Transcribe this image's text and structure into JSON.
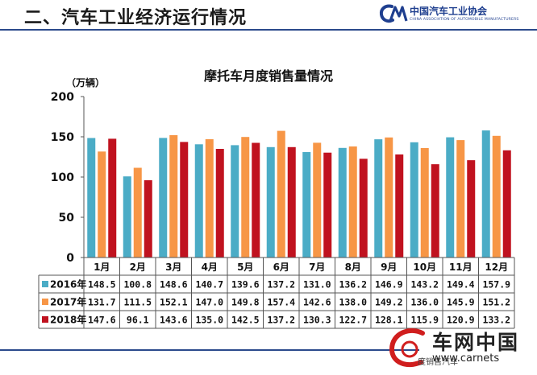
{
  "header": {
    "title": "二、汽车工业经济运行情况"
  },
  "logo": {
    "name_cn": "中国汽车工业协会",
    "name_en": "CHINA ASSOCIATION OF AUTOMOBILE MANUFACTURERS"
  },
  "watermark": {
    "name_cn": "车网中国",
    "url": "www.carnets",
    "sub": "度销售汽车"
  },
  "colors": {
    "s2016": "#4bacc6",
    "s2017": "#f79646",
    "s2018": "#c0121f",
    "header_line": "#2b4a8c"
  },
  "chart_data": {
    "type": "bar",
    "title": "摩托车月度销售量情况",
    "ylabel": "（万辆）",
    "ylim": [
      0,
      200
    ],
    "yticks": [
      0,
      50,
      100,
      150,
      200
    ],
    "categories": [
      "1月",
      "2月",
      "3月",
      "4月",
      "5月",
      "6月",
      "7月",
      "8月",
      "9月",
      "10月",
      "11月",
      "12月"
    ],
    "series": [
      {
        "name": "2016年",
        "values": [
          148.5,
          100.8,
          148.6,
          140.7,
          139.6,
          137.2,
          131.0,
          136.2,
          146.9,
          143.2,
          149.4,
          157.9
        ]
      },
      {
        "name": "2017年",
        "values": [
          131.7,
          111.5,
          152.1,
          147.0,
          149.8,
          157.4,
          142.6,
          138.0,
          149.2,
          136.0,
          145.9,
          151.2
        ]
      },
      {
        "name": "2018年",
        "values": [
          147.6,
          96.1,
          143.6,
          135.0,
          142.5,
          137.2,
          130.3,
          122.7,
          128.1,
          115.9,
          120.9,
          133.2
        ]
      }
    ],
    "table_labels": [
      [
        "148.5",
        "100.8",
        "148.6",
        "140.7",
        "139.6",
        "137.2",
        "131.0",
        "136.2",
        "146.9",
        "143.2",
        "149.4",
        "157.9"
      ],
      [
        "131.7",
        "111.5",
        "152.1",
        "147.0",
        "149.8",
        "157.4",
        "142.6",
        "138.0",
        "149.2",
        "136.0",
        "145.9",
        "151.2"
      ],
      [
        "147.6",
        "96.1",
        "143.6",
        "135.0",
        "142.5",
        "137.2",
        "130.3",
        "122.7",
        "128.1",
        "115.9",
        "120.9",
        "133.2"
      ]
    ],
    "grid": false,
    "legend": "data-table"
  }
}
